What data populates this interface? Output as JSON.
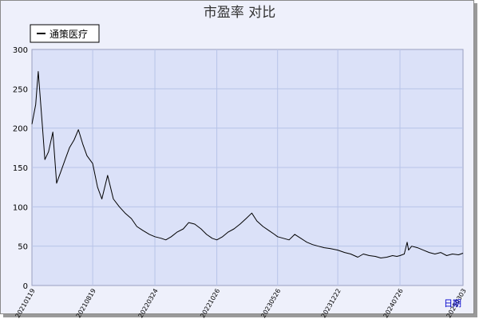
{
  "chart_data": {
    "type": "line",
    "title": "市盈率  对比",
    "xlabel": "日期",
    "ylabel": "",
    "ylim": [
      0,
      300
    ],
    "y_ticks": [
      0,
      50,
      100,
      150,
      200,
      250,
      300
    ],
    "x_tick_labels": [
      "20210119",
      "20210819",
      "20220324",
      "20221026",
      "20230526",
      "20231222",
      "20240726",
      "20250303"
    ],
    "grid": true,
    "legend_position": "top-left",
    "series": [
      {
        "name": "通策医疗",
        "color": "#000000",
        "x": [
          "20210119",
          "20210201",
          "20210210",
          "20210225",
          "20210305",
          "20210318",
          "20210402",
          "20210415",
          "20210430",
          "20210515",
          "20210530",
          "20210615",
          "20210630",
          "20210715",
          "20210730",
          "20210819",
          "20210905",
          "20210920",
          "20211010",
          "20211030",
          "20211120",
          "20211210",
          "20220101",
          "20220120",
          "20220210",
          "20220305",
          "20220324",
          "20220415",
          "20220501",
          "20220520",
          "20220610",
          "20220701",
          "20220720",
          "20220810",
          "20220901",
          "20220920",
          "20221010",
          "20221026",
          "20221115",
          "20221205",
          "20221225",
          "20230115",
          "20230205",
          "20230225",
          "20230315",
          "20230405",
          "20230425",
          "20230515",
          "20230526",
          "20230615",
          "20230705",
          "20230725",
          "20230815",
          "20230905",
          "20230925",
          "20231015",
          "20231105",
          "20231125",
          "20231222",
          "20240115",
          "20240205",
          "20240301",
          "20240320",
          "20240410",
          "20240501",
          "20240520",
          "20240610",
          "20240630",
          "20240715",
          "20240726",
          "20240810",
          "20240820",
          "20240825",
          "20240905",
          "20240925",
          "20241015",
          "20241105",
          "20241125",
          "20241215",
          "20250105",
          "20250125",
          "20250215",
          "20250303"
        ],
        "values": [
          205,
          230,
          272,
          200,
          160,
          170,
          195,
          130,
          145,
          160,
          175,
          185,
          198,
          180,
          165,
          155,
          125,
          110,
          140,
          110,
          100,
          92,
          85,
          75,
          70,
          65,
          62,
          60,
          58,
          62,
          68,
          72,
          80,
          78,
          72,
          65,
          60,
          58,
          62,
          68,
          72,
          78,
          85,
          92,
          82,
          75,
          70,
          65,
          62,
          60,
          58,
          65,
          60,
          55,
          52,
          50,
          48,
          47,
          45,
          42,
          40,
          36,
          40,
          38,
          37,
          35,
          36,
          38,
          37,
          38,
          40,
          55,
          45,
          50,
          48,
          45,
          42,
          40,
          42,
          38,
          40,
          39,
          41
        ]
      }
    ]
  }
}
